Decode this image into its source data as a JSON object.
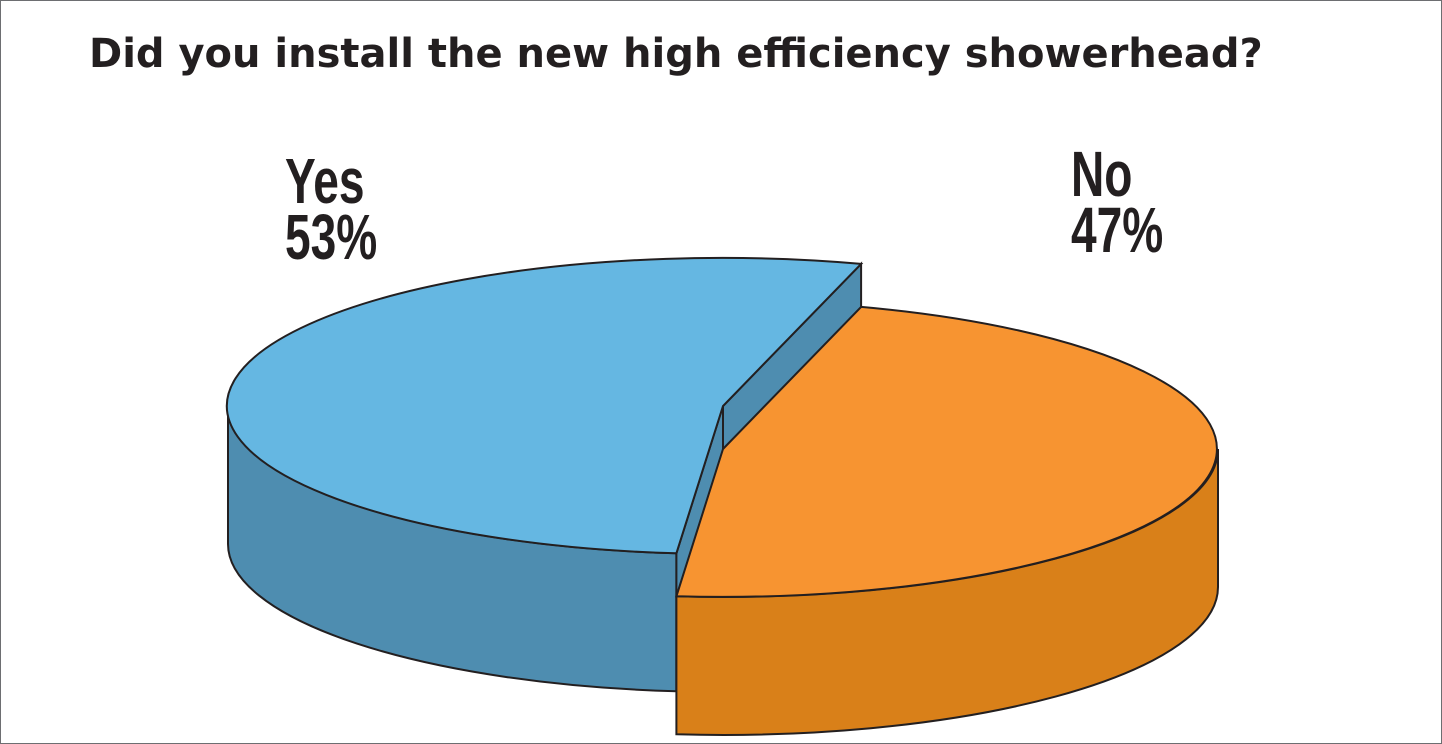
{
  "chart_data": {
    "type": "pie",
    "title": "Did you install the new high efficiency showerhead?",
    "slices": [
      {
        "label": "Yes",
        "value": 53,
        "value_label": "53%",
        "top_color": "#65b7e2",
        "side_color": "#4e8db0"
      },
      {
        "label": "No",
        "value": 47,
        "value_label": "47%",
        "top_color": "#f79431",
        "side_color": "#d98019"
      }
    ],
    "style": "3d-exploded",
    "legend": "none"
  }
}
